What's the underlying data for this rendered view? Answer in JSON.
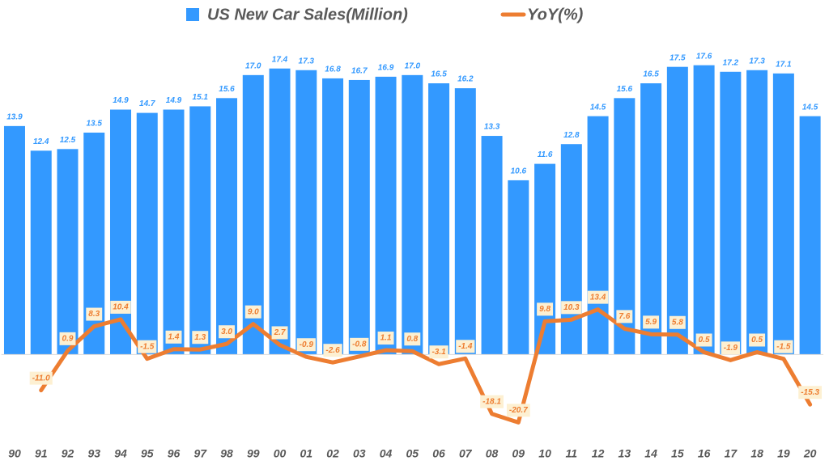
{
  "chart_data": {
    "type": "bar-line",
    "categories": [
      "90",
      "91",
      "92",
      "93",
      "94",
      "95",
      "96",
      "97",
      "98",
      "99",
      "00",
      "01",
      "02",
      "03",
      "04",
      "05",
      "06",
      "07",
      "08",
      "09",
      "10",
      "11",
      "12",
      "13",
      "14",
      "15",
      "16",
      "17",
      "18",
      "19",
      "20"
    ],
    "series": [
      {
        "name": "US New Car Sales(Million)",
        "type": "bar",
        "color": "#3399ff",
        "values": [
          13.9,
          12.4,
          12.5,
          13.5,
          14.9,
          14.7,
          14.9,
          15.1,
          15.6,
          17.0,
          17.4,
          17.3,
          16.8,
          16.7,
          16.9,
          17.0,
          16.5,
          16.2,
          13.3,
          10.6,
          11.6,
          12.8,
          14.5,
          15.6,
          16.5,
          17.5,
          17.6,
          17.2,
          17.3,
          17.1,
          14.5
        ],
        "value_labels": [
          "13.9",
          "12.4",
          "12.5",
          "13.5",
          "14.9",
          "14.7",
          "14.9",
          "15.1",
          "15.6",
          "17.0",
          "17.4",
          "17.3",
          "16.8",
          "16.7",
          "16.9",
          "17.0",
          "16.5",
          "16.2",
          "13.3",
          "10.6",
          "11.6",
          "12.8",
          "14.5",
          "15.6",
          "16.5",
          "17.5",
          "17.6",
          "17.2",
          "17.3",
          "17.1",
          "14.5"
        ]
      },
      {
        "name": "YoY(%)",
        "type": "line",
        "color": "#ed7d31",
        "axis": "y2",
        "values": [
          null,
          -11.0,
          0.9,
          8.3,
          10.4,
          -1.5,
          1.4,
          1.3,
          3.0,
          9.0,
          2.7,
          -0.9,
          -2.6,
          -0.8,
          1.1,
          0.8,
          -3.1,
          -1.4,
          -18.1,
          -20.7,
          9.8,
          10.3,
          13.4,
          7.6,
          5.9,
          5.8,
          0.5,
          -1.9,
          0.5,
          -1.5,
          -15.3
        ],
        "value_labels": [
          null,
          "-11.0",
          "0.9",
          "8.3",
          "10.4",
          "-1.5",
          "1.4",
          "1.3",
          "3.0",
          "9.0",
          "2.7",
          "-0.9",
          "-2.6",
          "-0.8",
          "1.1",
          "0.8",
          "-3.1",
          "-1.4",
          "-18.1",
          "-20.7",
          "9.8",
          "10.3",
          "13.4",
          "7.6",
          "5.9",
          "5.8",
          "0.5",
          "-1.9",
          "0.5",
          "-1.5",
          "-15.3"
        ]
      }
    ],
    "ylim": [
      -5,
      19.6
    ],
    "y2lim": [
      -25,
      97
    ],
    "legend": "top"
  }
}
